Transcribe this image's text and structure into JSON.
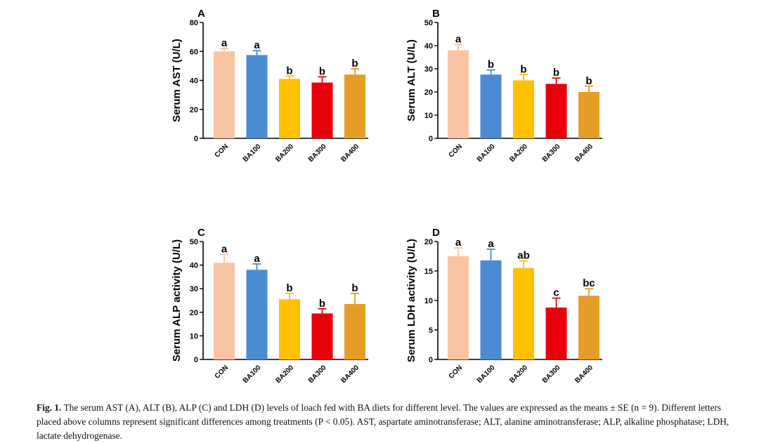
{
  "colors": {
    "CON": "#f9c4a3",
    "BA100": "#4a8bd2",
    "BA200": "#ffc000",
    "BA300": "#e8000b",
    "BA400": "#e69d27",
    "axis": "#000000"
  },
  "chart_data": [
    {
      "panel": "A",
      "type": "bar",
      "categories": [
        "CON",
        "BA100",
        "BA200",
        "BA300",
        "BA400"
      ],
      "values": [
        60,
        57.5,
        41,
        38.5,
        44
      ],
      "errors": [
        2,
        3,
        2,
        4,
        4
      ],
      "significance": [
        "a",
        "a",
        "b",
        "b",
        "b"
      ],
      "ylabel": "Serum AST (U/L)",
      "ylim": [
        0,
        80
      ],
      "yticks": [
        0,
        20,
        40,
        60,
        80
      ]
    },
    {
      "panel": "B",
      "type": "bar",
      "categories": [
        "CON",
        "BA100",
        "BA200",
        "BA300",
        "BA400"
      ],
      "values": [
        38,
        27.5,
        25,
        23.5,
        20
      ],
      "errors": [
        2.5,
        2,
        2.5,
        2.5,
        2.5
      ],
      "significance": [
        "a",
        "b",
        "b",
        "b",
        "b"
      ],
      "ylabel": "Serum ALT (U/L)",
      "ylim": [
        0,
        50
      ],
      "yticks": [
        0,
        10,
        20,
        30,
        40,
        50
      ]
    },
    {
      "panel": "C",
      "type": "bar",
      "categories": [
        "CON",
        "BA100",
        "BA200",
        "BA300",
        "BA400"
      ],
      "values": [
        41,
        38,
        25.5,
        19.5,
        23.5
      ],
      "errors": [
        3.5,
        2.5,
        2.5,
        2,
        4.5
      ],
      "significance": [
        "a",
        "a",
        "b",
        "b",
        "b"
      ],
      "ylabel": "Serum ALP activity (U/L)",
      "ylim": [
        0,
        50
      ],
      "yticks": [
        0,
        10,
        20,
        30,
        40,
        50
      ]
    },
    {
      "panel": "D",
      "type": "bar",
      "categories": [
        "CON",
        "BA100",
        "BA200",
        "BA300",
        "BA400"
      ],
      "values": [
        17.5,
        16.8,
        15.5,
        8.8,
        10.8
      ],
      "errors": [
        1.4,
        1.9,
        1.2,
        1.6,
        1.2
      ],
      "significance": [
        "a",
        "a",
        "ab",
        "c",
        "bc"
      ],
      "ylabel": "Serum LDH activity (U/L)",
      "ylim": [
        0,
        20
      ],
      "yticks": [
        0,
        5,
        10,
        15,
        20
      ]
    }
  ],
  "caption": {
    "label": "Fig. 1.",
    "text": " The serum AST (A), ALT (B), ALP (C) and LDH (D) levels of loach fed with BA diets for different level. The values are expressed as the means ± SE (n = 9). Different letters placed above columns represent significant differences among treatments (P < 0.05). AST, aspartate aminotransferase; ALT, alanine aminotransferase; ALP, alkaline phosphatase; LDH, lactate dehydrogenase."
  }
}
